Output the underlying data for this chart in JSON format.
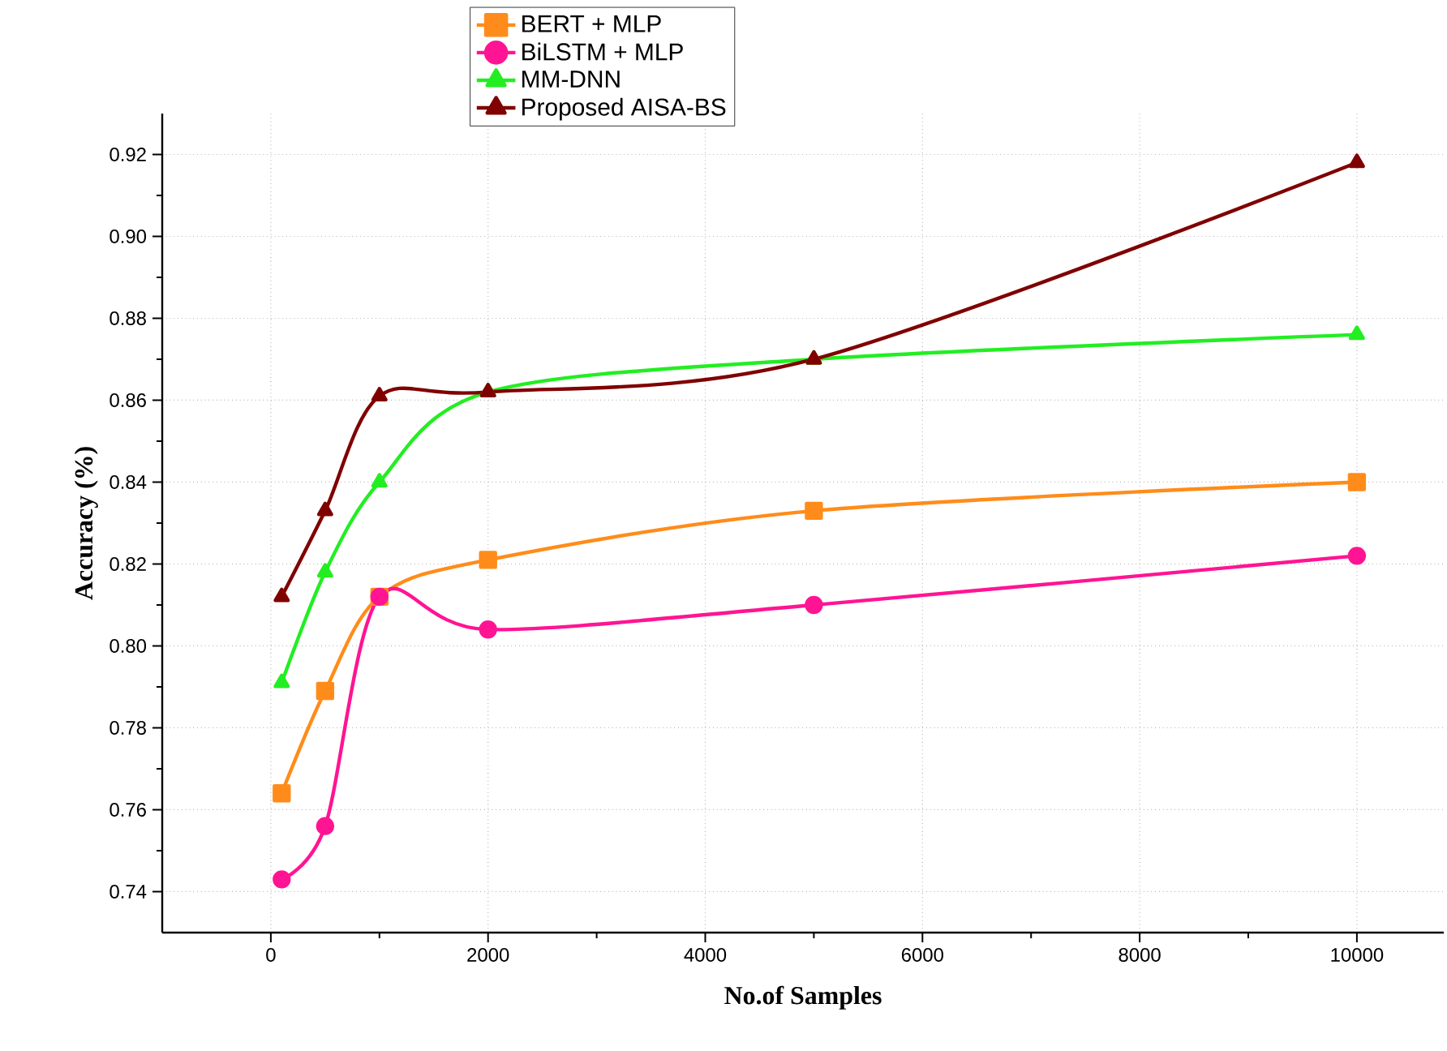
{
  "chart_data": {
    "type": "line",
    "xlabel": "No.of Samples",
    "ylabel": "Accuracy (%)",
    "x": [
      100,
      500,
      1000,
      2000,
      5000,
      10000
    ],
    "series": [
      {
        "name": "BERT + MLP",
        "color": "#ff8c1a",
        "marker": "square",
        "values": [
          0.764,
          0.789,
          0.812,
          0.821,
          0.833,
          0.84
        ]
      },
      {
        "name": "BiLSTM + MLP",
        "color": "#ff1493",
        "marker": "circle",
        "values": [
          0.743,
          0.756,
          0.812,
          0.804,
          0.81,
          0.822
        ]
      },
      {
        "name": "MM-DNN",
        "color": "#22ee22",
        "marker": "triangle",
        "values": [
          0.791,
          0.818,
          0.84,
          0.862,
          0.87,
          0.876
        ]
      },
      {
        "name": "Proposed AISA-BS",
        "color": "#800000",
        "marker": "triangle-down",
        "values": [
          0.812,
          0.833,
          0.861,
          0.862,
          0.87,
          0.918
        ]
      }
    ],
    "xlim": [
      -1000,
      10800
    ],
    "ylim": [
      0.73,
      0.93
    ],
    "xticks": [
      0,
      2000,
      4000,
      6000,
      8000,
      10000
    ],
    "yticks": [
      {
        "value": 0.74,
        "label": "0.74"
      },
      {
        "value": 0.76,
        "label": "0.76"
      },
      {
        "value": 0.78,
        "label": "0.78"
      },
      {
        "value": 0.8,
        "label": "0.80"
      },
      {
        "value": 0.82,
        "label": "0.82"
      },
      {
        "value": 0.84,
        "label": "0.84"
      },
      {
        "value": 0.86,
        "label": "0.86"
      },
      {
        "value": 0.88,
        "label": "0.88"
      },
      {
        "value": 0.9,
        "label": "0.90"
      },
      {
        "value": 0.92,
        "label": "0.92"
      }
    ],
    "grid": true,
    "legend": "top",
    "line_style": "solid"
  }
}
